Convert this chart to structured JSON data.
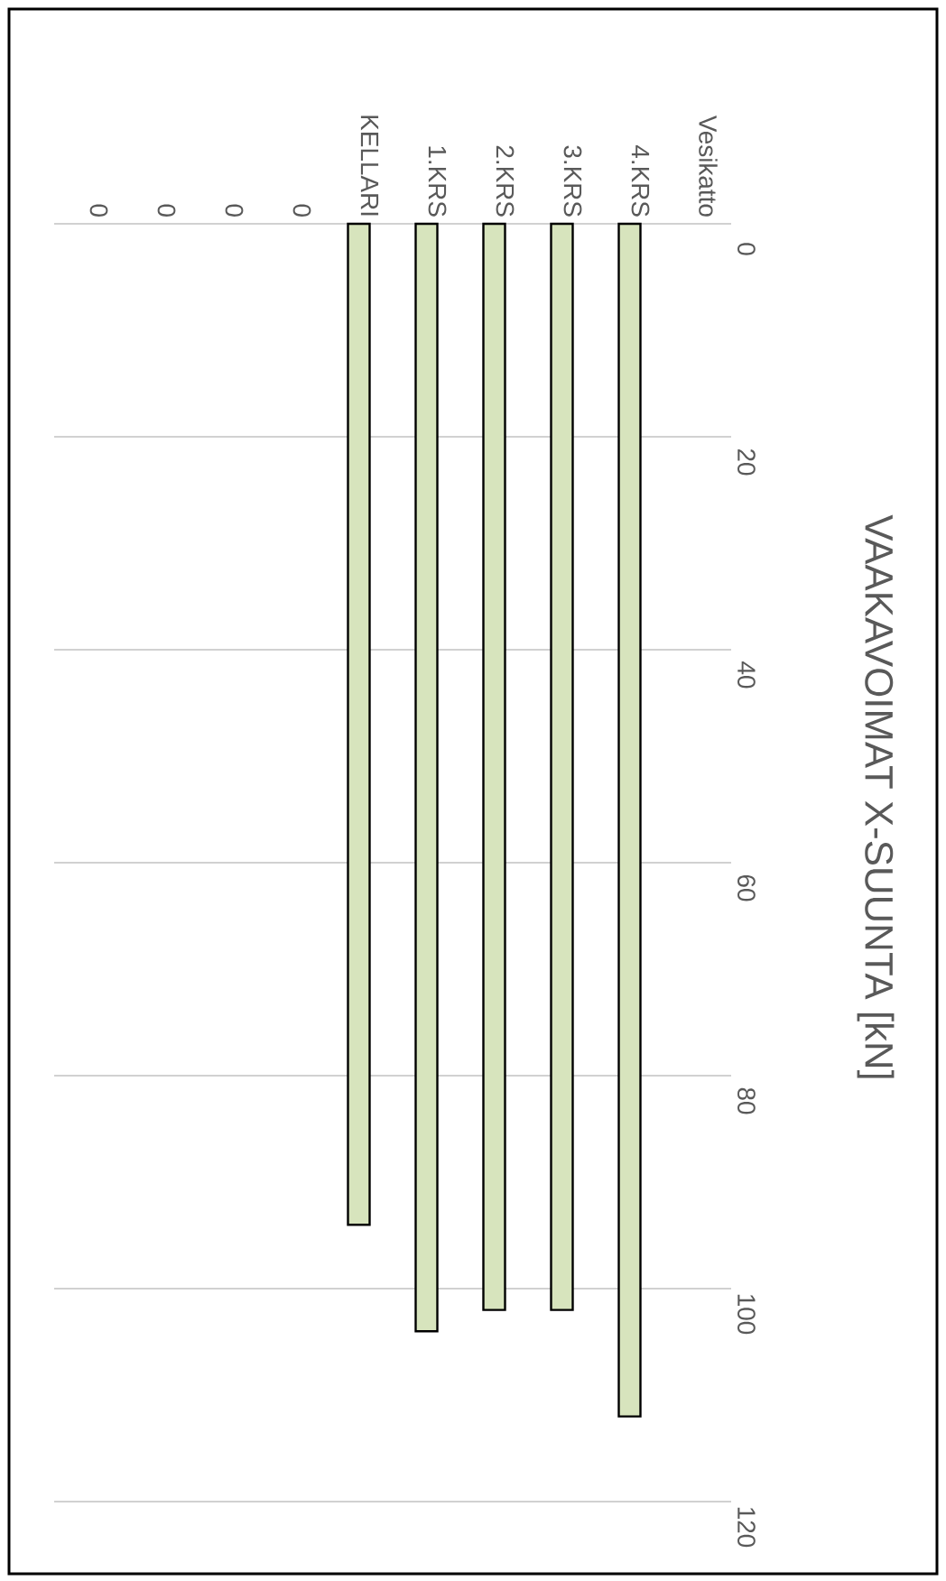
{
  "chart_data": {
    "type": "bar",
    "title": "VAAKAVOIMAT X-SUUNTA [kN]",
    "categories": [
      "0",
      "0",
      "0",
      "0",
      "KELLARI",
      "1.KRS",
      "2.KRS",
      "3.KRS",
      "4.KRS",
      "Vesikatto"
    ],
    "values": [
      null,
      null,
      null,
      null,
      94,
      104,
      102,
      102,
      112,
      null
    ],
    "color": "#d7e4bd",
    "ylim": [
      120,
      0
    ],
    "yticks": [
      0,
      20,
      40,
      60,
      80,
      100,
      120
    ],
    "grid": "y"
  }
}
